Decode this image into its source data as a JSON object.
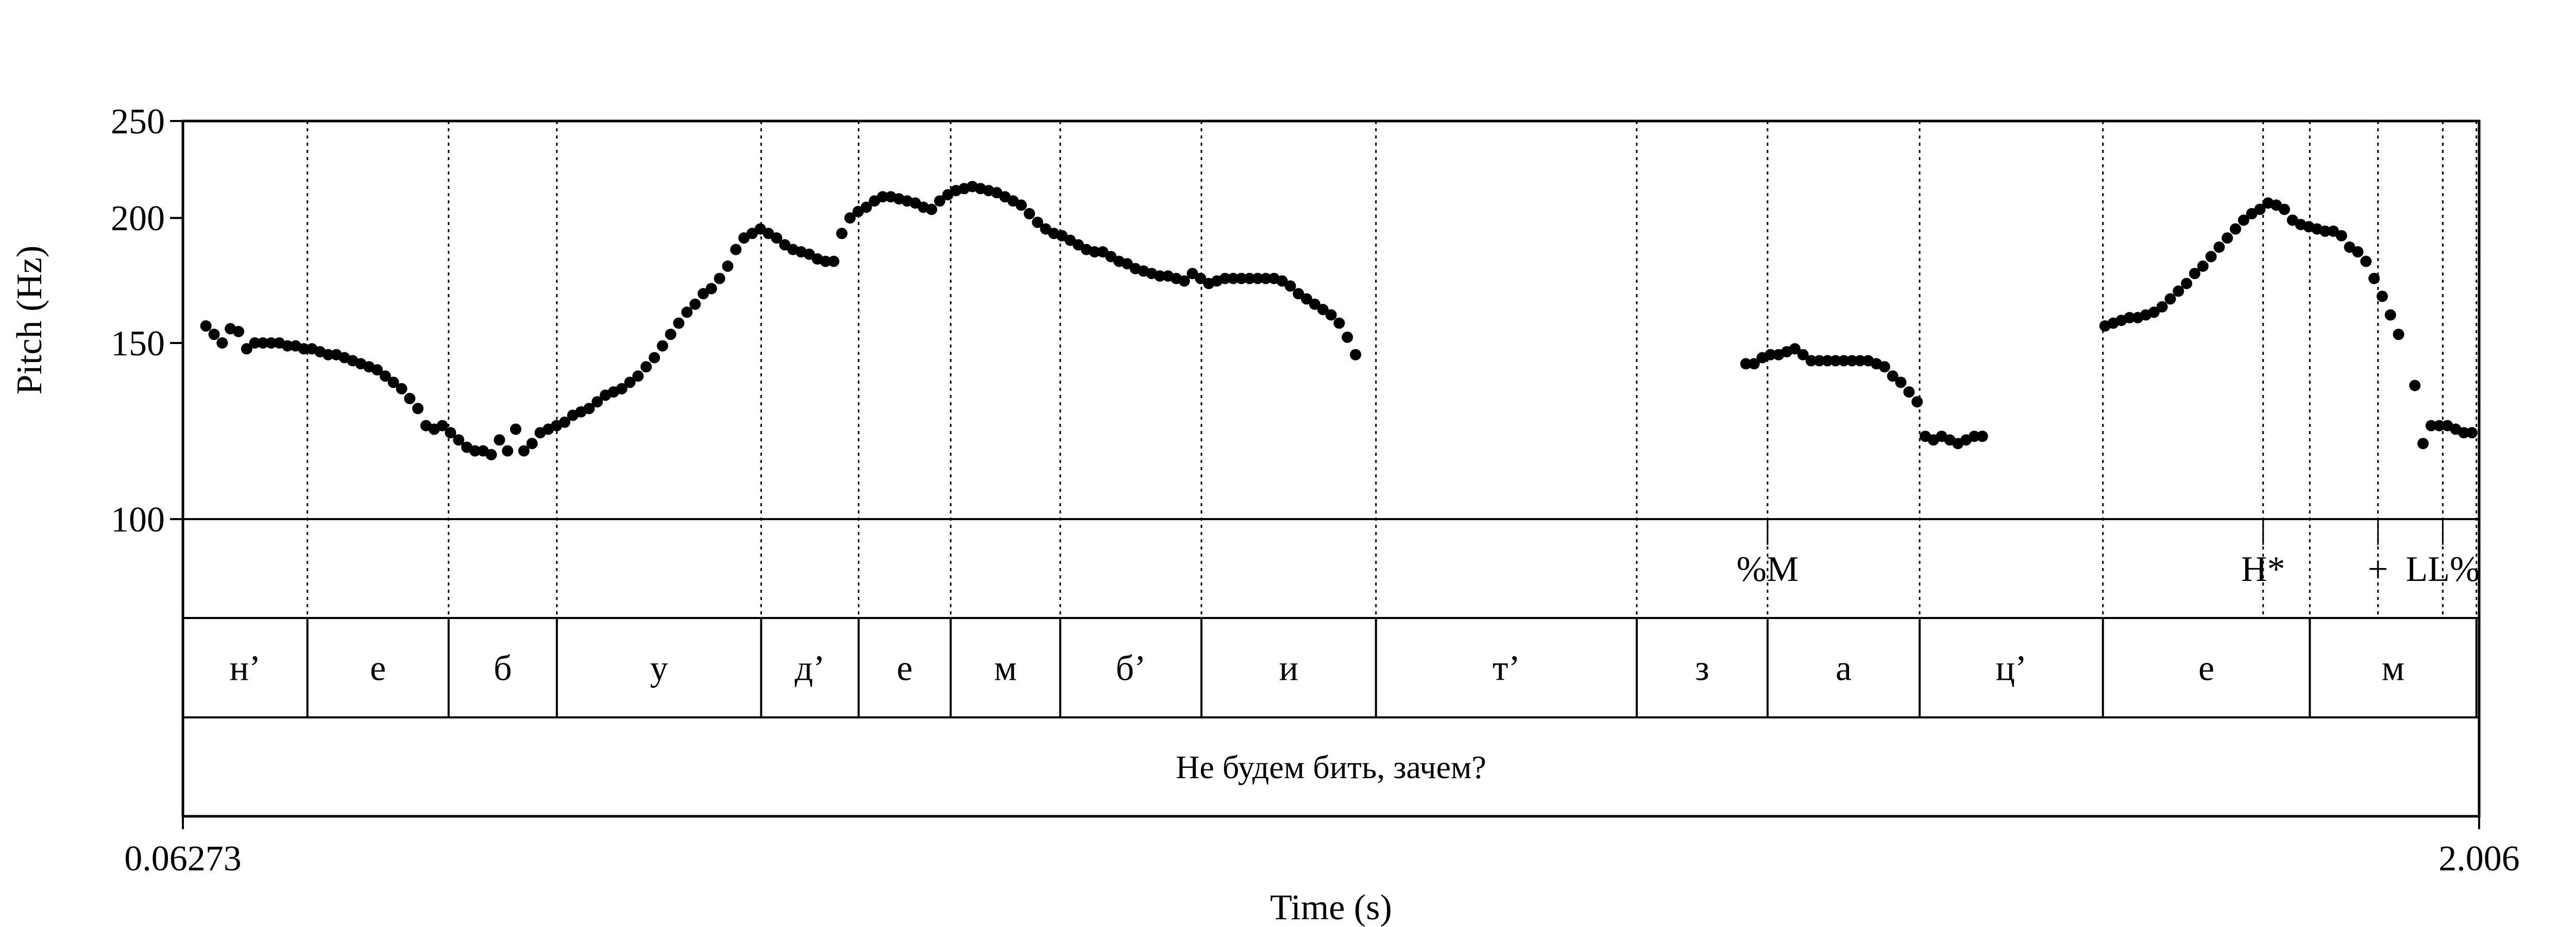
{
  "chart_data": {
    "type": "scatter",
    "title": "",
    "xlabel": "Time (s)",
    "ylabel": "Pitch (Hz)",
    "xlim": [
      0.06273,
      2.006
    ],
    "ylim": [
      100,
      250
    ],
    "yscale": "log",
    "x_tick_labels": [
      "0.06273",
      "2.006"
    ],
    "y_ticks": [
      {
        "value": 100,
        "label": "100"
      },
      {
        "value": 150,
        "label": "150"
      },
      {
        "value": 200,
        "label": "200"
      },
      {
        "value": 250,
        "label": "250"
      }
    ],
    "boundaries": [
      0.1681,
      0.2876,
      0.3792,
      0.5521,
      0.6346,
      0.7125,
      0.8052,
      0.9247,
      1.0724,
      1.2931,
      1.4038,
      1.5325,
      1.6876,
      1.8232,
      1.8627,
      1.9204,
      1.9752,
      2.0037
    ],
    "tone_tier": [
      {
        "label": "%M",
        "time": 1.4038
      },
      {
        "label": "H*",
        "time": 1.8232
      },
      {
        "label": "+",
        "time": 1.9204
      },
      {
        "label": "LL%",
        "time": 1.9752
      }
    ],
    "phone_tier": [
      {
        "label": "н’",
        "start": 0.06273,
        "end": 0.1681
      },
      {
        "label": "е",
        "start": 0.1681,
        "end": 0.2876
      },
      {
        "label": "б",
        "start": 0.2876,
        "end": 0.3792
      },
      {
        "label": "у",
        "start": 0.3792,
        "end": 0.5521
      },
      {
        "label": "д’",
        "start": 0.5521,
        "end": 0.6346
      },
      {
        "label": "е",
        "start": 0.6346,
        "end": 0.7125
      },
      {
        "label": "м",
        "start": 0.7125,
        "end": 0.8052
      },
      {
        "label": "б’",
        "start": 0.8052,
        "end": 0.9247
      },
      {
        "label": "и",
        "start": 0.9247,
        "end": 1.0724
      },
      {
        "label": "т’",
        "start": 1.0724,
        "end": 1.2931
      },
      {
        "label": "з",
        "start": 1.2931,
        "end": 1.4038
      },
      {
        "label": "а",
        "start": 1.4038,
        "end": 1.5325
      },
      {
        "label": "ц’",
        "start": 1.5325,
        "end": 1.6876
      },
      {
        "label": "е",
        "start": 1.6876,
        "end": 1.8627
      },
      {
        "label": "м",
        "start": 1.8627,
        "end": 2.0037
      }
    ],
    "sentence_tier": "Не будем бить, зачем?",
    "series": [
      {
        "marker": "circle",
        "color": "#000000",
        "points": [
          [
            0.0822,
            156
          ],
          [
            0.0891,
            153
          ],
          [
            0.096,
            150
          ],
          [
            0.1029,
            155
          ],
          [
            0.1098,
            154
          ],
          [
            0.1167,
            148
          ],
          [
            0.1236,
            150
          ],
          [
            0.1305,
            150
          ],
          [
            0.1374,
            150
          ],
          [
            0.1443,
            150
          ],
          [
            0.1512,
            149
          ],
          [
            0.1581,
            149
          ],
          [
            0.165,
            148
          ],
          [
            0.1719,
            148
          ],
          [
            0.1788,
            147
          ],
          [
            0.1857,
            146
          ],
          [
            0.1926,
            146
          ],
          [
            0.1995,
            145
          ],
          [
            0.2064,
            144
          ],
          [
            0.2133,
            143
          ],
          [
            0.2202,
            142
          ],
          [
            0.2271,
            141
          ],
          [
            0.234,
            139
          ],
          [
            0.2409,
            137
          ],
          [
            0.2478,
            135
          ],
          [
            0.2547,
            132
          ],
          [
            0.2616,
            129
          ],
          [
            0.2685,
            124
          ],
          [
            0.2754,
            123
          ],
          [
            0.2823,
            124
          ],
          [
            0.2892,
            122
          ],
          [
            0.2961,
            120
          ],
          [
            0.303,
            118
          ],
          [
            0.3099,
            117
          ],
          [
            0.3168,
            117
          ],
          [
            0.3237,
            116
          ],
          [
            0.3306,
            120
          ],
          [
            0.3375,
            117
          ],
          [
            0.3444,
            123
          ],
          [
            0.3513,
            117
          ],
          [
            0.3582,
            119
          ],
          [
            0.3651,
            122
          ],
          [
            0.372,
            123
          ],
          [
            0.3789,
            124
          ],
          [
            0.3858,
            125
          ],
          [
            0.3927,
            127
          ],
          [
            0.3996,
            128
          ],
          [
            0.4065,
            129
          ],
          [
            0.4134,
            131
          ],
          [
            0.4203,
            133
          ],
          [
            0.4272,
            134
          ],
          [
            0.4341,
            135
          ],
          [
            0.441,
            137
          ],
          [
            0.4479,
            139
          ],
          [
            0.4548,
            142
          ],
          [
            0.4617,
            145
          ],
          [
            0.4686,
            149
          ],
          [
            0.4755,
            153
          ],
          [
            0.4824,
            157
          ],
          [
            0.4893,
            161
          ],
          [
            0.4962,
            164
          ],
          [
            0.5031,
            168
          ],
          [
            0.51,
            170
          ],
          [
            0.5169,
            174
          ],
          [
            0.5238,
            179
          ],
          [
            0.5307,
            186
          ],
          [
            0.5376,
            191
          ],
          [
            0.5445,
            193
          ],
          [
            0.5514,
            195
          ],
          [
            0.5583,
            193
          ],
          [
            0.5652,
            191
          ],
          [
            0.5721,
            188
          ],
          [
            0.579,
            186
          ],
          [
            0.5859,
            185
          ],
          [
            0.5928,
            184
          ],
          [
            0.5997,
            182
          ],
          [
            0.6066,
            181
          ],
          [
            0.6135,
            181
          ],
          [
            0.6204,
            193
          ],
          [
            0.6273,
            200
          ],
          [
            0.6342,
            203
          ],
          [
            0.6411,
            205
          ],
          [
            0.648,
            208
          ],
          [
            0.6549,
            210
          ],
          [
            0.6618,
            210
          ],
          [
            0.6687,
            209
          ],
          [
            0.6756,
            208
          ],
          [
            0.6825,
            207
          ],
          [
            0.6894,
            205
          ],
          [
            0.6963,
            204
          ],
          [
            0.7032,
            208
          ],
          [
            0.7101,
            211
          ],
          [
            0.717,
            213
          ],
          [
            0.7239,
            214
          ],
          [
            0.7308,
            215
          ],
          [
            0.7377,
            214
          ],
          [
            0.7446,
            213
          ],
          [
            0.7515,
            212
          ],
          [
            0.7584,
            210
          ],
          [
            0.7653,
            208
          ],
          [
            0.7722,
            206
          ],
          [
            0.7791,
            202
          ],
          [
            0.786,
            198
          ],
          [
            0.7929,
            195
          ],
          [
            0.7998,
            193
          ],
          [
            0.8067,
            192
          ],
          [
            0.8136,
            190
          ],
          [
            0.8205,
            188
          ],
          [
            0.8274,
            186
          ],
          [
            0.8343,
            185
          ],
          [
            0.8412,
            185
          ],
          [
            0.8481,
            183
          ],
          [
            0.855,
            181
          ],
          [
            0.8619,
            180
          ],
          [
            0.8688,
            178
          ],
          [
            0.8757,
            177
          ],
          [
            0.8826,
            176
          ],
          [
            0.8895,
            175
          ],
          [
            0.8964,
            175
          ],
          [
            0.9033,
            174
          ],
          [
            0.9102,
            173
          ],
          [
            0.9171,
            176
          ],
          [
            0.924,
            174
          ],
          [
            0.9309,
            172
          ],
          [
            0.9378,
            173
          ],
          [
            0.9447,
            174
          ],
          [
            0.9516,
            174
          ],
          [
            0.9585,
            174
          ],
          [
            0.9654,
            174
          ],
          [
            0.9723,
            174
          ],
          [
            0.9792,
            174
          ],
          [
            0.9861,
            174
          ],
          [
            0.993,
            173
          ],
          [
            0.9999,
            171
          ],
          [
            1.0068,
            168
          ],
          [
            1.0137,
            166
          ],
          [
            1.0206,
            164
          ],
          [
            1.0275,
            162
          ],
          [
            1.0344,
            160
          ],
          [
            1.0413,
            157
          ],
          [
            1.0482,
            152
          ],
          [
            1.0551,
            146
          ],
          [
            1.3855,
            143
          ],
          [
            1.3924,
            143
          ],
          [
            1.3993,
            145
          ],
          [
            1.4062,
            146
          ],
          [
            1.4131,
            146
          ],
          [
            1.42,
            147
          ],
          [
            1.4269,
            148
          ],
          [
            1.4338,
            146
          ],
          [
            1.4407,
            144
          ],
          [
            1.4476,
            144
          ],
          [
            1.4545,
            144
          ],
          [
            1.4614,
            144
          ],
          [
            1.4683,
            144
          ],
          [
            1.4752,
            144
          ],
          [
            1.4821,
            144
          ],
          [
            1.489,
            144
          ],
          [
            1.4959,
            143
          ],
          [
            1.5028,
            142
          ],
          [
            1.5097,
            139
          ],
          [
            1.5166,
            137
          ],
          [
            1.5235,
            134
          ],
          [
            1.5304,
            131
          ],
          [
            1.5373,
            121
          ],
          [
            1.5442,
            120
          ],
          [
            1.5511,
            121
          ],
          [
            1.558,
            120
          ],
          [
            1.5649,
            119
          ],
          [
            1.5718,
            120
          ],
          [
            1.5787,
            121
          ],
          [
            1.5856,
            121
          ],
          [
            1.6894,
            156
          ],
          [
            1.6963,
            157
          ],
          [
            1.7032,
            158
          ],
          [
            1.7101,
            159
          ],
          [
            1.717,
            159
          ],
          [
            1.7239,
            160
          ],
          [
            1.7308,
            161
          ],
          [
            1.7377,
            163
          ],
          [
            1.7446,
            166
          ],
          [
            1.7515,
            169
          ],
          [
            1.7584,
            172
          ],
          [
            1.7653,
            176
          ],
          [
            1.7722,
            179
          ],
          [
            1.7791,
            183
          ],
          [
            1.786,
            187
          ],
          [
            1.7929,
            191
          ],
          [
            1.7998,
            195
          ],
          [
            1.8067,
            199
          ],
          [
            1.8136,
            202
          ],
          [
            1.8205,
            204
          ],
          [
            1.8274,
            207
          ],
          [
            1.8343,
            206
          ],
          [
            1.8412,
            204
          ],
          [
            1.8481,
            199
          ],
          [
            1.855,
            197
          ],
          [
            1.8619,
            196
          ],
          [
            1.8688,
            195
          ],
          [
            1.8757,
            194
          ],
          [
            1.8826,
            194
          ],
          [
            1.8895,
            192
          ],
          [
            1.8964,
            187
          ],
          [
            1.9033,
            185
          ],
          [
            1.9102,
            181
          ],
          [
            1.9171,
            174
          ],
          [
            1.924,
            167
          ],
          [
            1.9309,
            160
          ],
          [
            1.9378,
            153
          ],
          [
            1.9516,
            136
          ],
          [
            1.9585,
            119
          ],
          [
            1.9654,
            124
          ],
          [
            1.9723,
            124
          ],
          [
            1.9792,
            124
          ],
          [
            1.9861,
            123
          ],
          [
            1.993,
            122
          ],
          [
            1.9999,
            122
          ]
        ]
      }
    ]
  }
}
